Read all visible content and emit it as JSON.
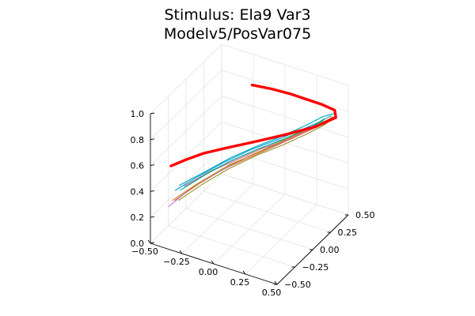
{
  "chart_data": {
    "type": "line3d",
    "title_lines": [
      "Stimulus: Ela9 Var3",
      "Modelv5/PosVar075"
    ],
    "x_ticks": [
      "−0.50",
      "−0.25",
      "0.00",
      "0.25",
      "0.50"
    ],
    "y_ticks": [
      "−0.50",
      "−0.25",
      "0.00",
      "0.25",
      "0.50"
    ],
    "z_ticks": [
      "0.0",
      "0.2",
      "0.4",
      "0.6",
      "0.8",
      "1.0"
    ],
    "xlim": [
      -0.5,
      0.5
    ],
    "ylim": [
      -0.5,
      0.5
    ],
    "zlim": [
      0.0,
      1.0
    ],
    "grid": true,
    "legend": "none",
    "series_colors": [
      "#009af9",
      "#e26f46",
      "#3da44d",
      "#c271d2",
      "#ac8e18",
      "#00a9ad",
      "#ed5e93",
      "#c68225",
      "#00a98d",
      "#8e971d"
    ],
    "highlight": {
      "color": "#ff0000",
      "points": [
        [
          -0.08,
          0.18,
          0.99
        ],
        [
          0.05,
          0.22,
          0.98
        ],
        [
          0.18,
          0.26,
          0.96
        ],
        [
          0.28,
          0.3,
          0.93
        ],
        [
          0.38,
          0.34,
          0.9
        ],
        [
          0.46,
          0.38,
          0.86
        ],
        [
          0.48,
          0.36,
          0.82
        ],
        [
          0.4,
          0.22,
          0.8
        ],
        [
          0.25,
          0.05,
          0.78
        ],
        [
          0.1,
          -0.1,
          0.76
        ],
        [
          -0.05,
          -0.22,
          0.73
        ],
        [
          -0.18,
          -0.32,
          0.7
        ],
        [
          -0.28,
          -0.4,
          0.66
        ],
        [
          -0.36,
          -0.46,
          0.62
        ]
      ]
    },
    "trials": [
      [
        [
          -0.36,
          -0.4,
          0.4
        ],
        [
          -0.25,
          -0.3,
          0.48
        ],
        [
          -0.1,
          -0.18,
          0.58
        ],
        [
          0.05,
          -0.05,
          0.66
        ],
        [
          0.2,
          0.08,
          0.72
        ],
        [
          0.32,
          0.2,
          0.77
        ],
        [
          0.4,
          0.3,
          0.8
        ],
        [
          0.44,
          0.36,
          0.82
        ]
      ],
      [
        [
          -0.34,
          -0.44,
          0.35
        ],
        [
          -0.22,
          -0.32,
          0.45
        ],
        [
          -0.08,
          -0.2,
          0.55
        ],
        [
          0.08,
          -0.06,
          0.63
        ],
        [
          0.22,
          0.06,
          0.7
        ],
        [
          0.33,
          0.18,
          0.75
        ],
        [
          0.42,
          0.28,
          0.79
        ],
        [
          0.46,
          0.34,
          0.83
        ]
      ],
      [
        [
          -0.3,
          -0.38,
          0.44
        ],
        [
          -0.18,
          -0.26,
          0.52
        ],
        [
          -0.04,
          -0.14,
          0.6
        ],
        [
          0.1,
          -0.02,
          0.67
        ],
        [
          0.24,
          0.1,
          0.72
        ],
        [
          0.34,
          0.22,
          0.76
        ],
        [
          0.41,
          0.32,
          0.81
        ]
      ],
      [
        [
          -0.38,
          -0.46,
          0.3
        ],
        [
          -0.26,
          -0.34,
          0.42
        ],
        [
          -0.12,
          -0.22,
          0.52
        ],
        [
          0.03,
          -0.08,
          0.61
        ],
        [
          0.18,
          0.04,
          0.68
        ],
        [
          0.3,
          0.16,
          0.74
        ],
        [
          0.39,
          0.26,
          0.78
        ],
        [
          0.45,
          0.34,
          0.81
        ]
      ],
      [
        [
          -0.32,
          -0.42,
          0.38
        ],
        [
          -0.2,
          -0.3,
          0.47
        ],
        [
          -0.06,
          -0.17,
          0.57
        ],
        [
          0.09,
          -0.04,
          0.64
        ],
        [
          0.23,
          0.09,
          0.71
        ],
        [
          0.35,
          0.21,
          0.76
        ],
        [
          0.43,
          0.31,
          0.8
        ]
      ],
      [
        [
          -0.35,
          -0.36,
          0.42
        ],
        [
          -0.22,
          -0.24,
          0.5
        ],
        [
          -0.08,
          -0.12,
          0.59
        ],
        [
          0.06,
          0.0,
          0.66
        ],
        [
          0.2,
          0.12,
          0.72
        ],
        [
          0.31,
          0.24,
          0.77
        ],
        [
          0.4,
          0.33,
          0.82
        ],
        [
          0.47,
          0.38,
          0.84
        ]
      ],
      [
        [
          -0.28,
          -0.4,
          0.46
        ],
        [
          -0.16,
          -0.28,
          0.54
        ],
        [
          -0.02,
          -0.16,
          0.61
        ],
        [
          0.12,
          -0.04,
          0.68
        ],
        [
          0.26,
          0.08,
          0.73
        ],
        [
          0.36,
          0.2,
          0.77
        ],
        [
          0.42,
          0.3,
          0.8
        ]
      ],
      [
        [
          -0.37,
          -0.42,
          0.33
        ],
        [
          -0.24,
          -0.32,
          0.44
        ],
        [
          -0.1,
          -0.2,
          0.54
        ],
        [
          0.05,
          -0.06,
          0.62
        ],
        [
          0.19,
          0.06,
          0.69
        ],
        [
          0.31,
          0.18,
          0.75
        ],
        [
          0.4,
          0.28,
          0.79
        ],
        [
          0.46,
          0.36,
          0.82
        ]
      ],
      [
        [
          -0.33,
          -0.38,
          0.4
        ],
        [
          -0.21,
          -0.27,
          0.49
        ],
        [
          -0.07,
          -0.15,
          0.58
        ],
        [
          0.07,
          -0.03,
          0.65
        ],
        [
          0.21,
          0.09,
          0.71
        ],
        [
          0.33,
          0.21,
          0.76
        ],
        [
          0.41,
          0.31,
          0.8
        ]
      ],
      [
        [
          -0.31,
          -0.44,
          0.36
        ],
        [
          -0.19,
          -0.33,
          0.46
        ],
        [
          -0.05,
          -0.21,
          0.56
        ],
        [
          0.1,
          -0.07,
          0.64
        ],
        [
          0.24,
          0.05,
          0.7
        ],
        [
          0.35,
          0.17,
          0.75
        ],
        [
          0.43,
          0.27,
          0.79
        ],
        [
          0.47,
          0.33,
          0.82
        ]
      ]
    ]
  }
}
